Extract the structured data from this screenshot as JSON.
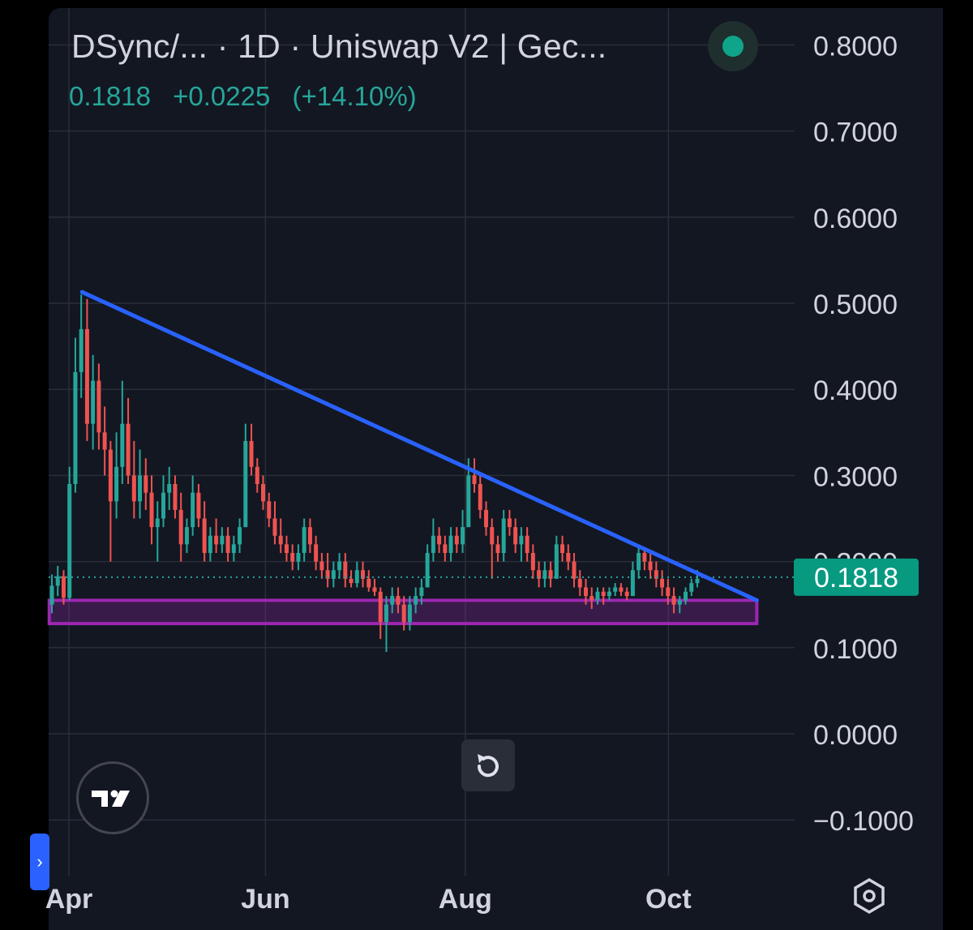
{
  "header": {
    "title": "DSync/...    · 1D · Uniswap V2 | Gec...",
    "last_price": "0.1818",
    "change": "+0.0225",
    "change_pct": "(+14.10%)",
    "status_color": "#0fa58a"
  },
  "price_tag": {
    "label": "0.1818",
    "color": "#089981"
  },
  "icons": {
    "reset": "reset-icon",
    "logo": "tradingview-logo",
    "toggle": "chevron-right-icon",
    "settings": "settings-hexagon-icon"
  },
  "colors": {
    "background": "#131722",
    "up": "#26a69a",
    "down": "#ef5350",
    "trendline": "#2962ff",
    "support_zone": "#9c27b0",
    "grid": "#2a2e39",
    "text": "#d1d4dc"
  },
  "chart_data": {
    "type": "candlestick",
    "x_tick_labels": [
      "Apr",
      "Jun",
      "Aug",
      "Oct"
    ],
    "y_tick_labels": [
      "0.8000",
      "0.7000",
      "0.6000",
      "0.5000",
      "0.4000",
      "0.3000",
      "0.2000",
      "0.1000",
      "0.0000",
      "−0.1000"
    ],
    "ylim": [
      -0.13,
      0.85
    ],
    "grid": true,
    "last_price": 0.1818,
    "trendline": {
      "start": {
        "day": 4,
        "price": 0.513
      },
      "end": {
        "day": 210,
        "price": 0.155
      }
    },
    "support_zone": {
      "start_day": -6,
      "end_day": 210,
      "top": 0.155,
      "bottom": 0.128
    },
    "ohlc": [
      [
        0.15,
        0.185,
        0.14,
        0.172
      ],
      [
        0.172,
        0.195,
        0.16,
        0.183
      ],
      [
        0.183,
        0.19,
        0.15,
        0.158
      ],
      [
        0.158,
        0.31,
        0.155,
        0.29
      ],
      [
        0.29,
        0.46,
        0.28,
        0.42
      ],
      [
        0.42,
        0.51,
        0.39,
        0.47
      ],
      [
        0.47,
        0.505,
        0.34,
        0.36
      ],
      [
        0.36,
        0.44,
        0.33,
        0.41
      ],
      [
        0.41,
        0.43,
        0.33,
        0.35
      ],
      [
        0.35,
        0.38,
        0.3,
        0.33
      ],
      [
        0.33,
        0.34,
        0.2,
        0.27
      ],
      [
        0.27,
        0.35,
        0.25,
        0.31
      ],
      [
        0.31,
        0.41,
        0.29,
        0.36
      ],
      [
        0.36,
        0.39,
        0.29,
        0.3
      ],
      [
        0.3,
        0.34,
        0.25,
        0.27
      ],
      [
        0.27,
        0.33,
        0.25,
        0.3
      ],
      [
        0.3,
        0.32,
        0.26,
        0.28
      ],
      [
        0.28,
        0.3,
        0.22,
        0.24
      ],
      [
        0.24,
        0.27,
        0.2,
        0.25
      ],
      [
        0.25,
        0.3,
        0.24,
        0.28
      ],
      [
        0.28,
        0.31,
        0.26,
        0.29
      ],
      [
        0.29,
        0.3,
        0.25,
        0.26
      ],
      [
        0.26,
        0.28,
        0.2,
        0.22
      ],
      [
        0.22,
        0.25,
        0.21,
        0.24
      ],
      [
        0.24,
        0.3,
        0.23,
        0.28
      ],
      [
        0.28,
        0.29,
        0.24,
        0.25
      ],
      [
        0.25,
        0.27,
        0.2,
        0.21
      ],
      [
        0.21,
        0.24,
        0.2,
        0.23
      ],
      [
        0.23,
        0.25,
        0.21,
        0.22
      ],
      [
        0.22,
        0.24,
        0.21,
        0.23
      ],
      [
        0.23,
        0.24,
        0.2,
        0.21
      ],
      [
        0.21,
        0.23,
        0.2,
        0.22
      ],
      [
        0.22,
        0.25,
        0.21,
        0.24
      ],
      [
        0.24,
        0.36,
        0.24,
        0.34
      ],
      [
        0.34,
        0.36,
        0.3,
        0.31
      ],
      [
        0.31,
        0.32,
        0.28,
        0.29
      ],
      [
        0.29,
        0.3,
        0.26,
        0.27
      ],
      [
        0.27,
        0.28,
        0.24,
        0.25
      ],
      [
        0.25,
        0.27,
        0.22,
        0.23
      ],
      [
        0.23,
        0.25,
        0.21,
        0.22
      ],
      [
        0.22,
        0.23,
        0.2,
        0.21
      ],
      [
        0.21,
        0.22,
        0.19,
        0.2
      ],
      [
        0.2,
        0.22,
        0.19,
        0.21
      ],
      [
        0.21,
        0.25,
        0.2,
        0.24
      ],
      [
        0.24,
        0.25,
        0.21,
        0.22
      ],
      [
        0.22,
        0.23,
        0.19,
        0.2
      ],
      [
        0.2,
        0.21,
        0.18,
        0.19
      ],
      [
        0.19,
        0.21,
        0.17,
        0.18
      ],
      [
        0.18,
        0.2,
        0.17,
        0.19
      ],
      [
        0.19,
        0.21,
        0.18,
        0.2
      ],
      [
        0.2,
        0.21,
        0.17,
        0.18
      ],
      [
        0.18,
        0.19,
        0.17,
        0.175
      ],
      [
        0.175,
        0.2,
        0.17,
        0.19
      ],
      [
        0.19,
        0.2,
        0.17,
        0.18
      ],
      [
        0.18,
        0.19,
        0.165,
        0.17
      ],
      [
        0.17,
        0.18,
        0.16,
        0.165
      ],
      [
        0.165,
        0.17,
        0.11,
        0.13
      ],
      [
        0.13,
        0.16,
        0.095,
        0.15
      ],
      [
        0.15,
        0.17,
        0.14,
        0.16
      ],
      [
        0.16,
        0.17,
        0.14,
        0.15
      ],
      [
        0.15,
        0.16,
        0.12,
        0.13
      ],
      [
        0.13,
        0.16,
        0.12,
        0.15
      ],
      [
        0.15,
        0.17,
        0.14,
        0.16
      ],
      [
        0.16,
        0.18,
        0.15,
        0.17
      ],
      [
        0.17,
        0.22,
        0.17,
        0.21
      ],
      [
        0.21,
        0.25,
        0.2,
        0.23
      ],
      [
        0.23,
        0.24,
        0.21,
        0.22
      ],
      [
        0.22,
        0.23,
        0.2,
        0.21
      ],
      [
        0.21,
        0.24,
        0.2,
        0.23
      ],
      [
        0.23,
        0.24,
        0.21,
        0.22
      ],
      [
        0.22,
        0.26,
        0.21,
        0.24
      ],
      [
        0.24,
        0.32,
        0.24,
        0.3
      ],
      [
        0.3,
        0.32,
        0.28,
        0.29
      ],
      [
        0.29,
        0.3,
        0.25,
        0.26
      ],
      [
        0.26,
        0.27,
        0.23,
        0.24
      ],
      [
        0.24,
        0.25,
        0.18,
        0.22
      ],
      [
        0.22,
        0.23,
        0.2,
        0.21
      ],
      [
        0.21,
        0.26,
        0.2,
        0.25
      ],
      [
        0.25,
        0.26,
        0.23,
        0.24
      ],
      [
        0.24,
        0.25,
        0.21,
        0.22
      ],
      [
        0.22,
        0.24,
        0.2,
        0.23
      ],
      [
        0.23,
        0.24,
        0.2,
        0.21
      ],
      [
        0.21,
        0.22,
        0.18,
        0.19
      ],
      [
        0.19,
        0.2,
        0.17,
        0.18
      ],
      [
        0.18,
        0.2,
        0.17,
        0.19
      ],
      [
        0.19,
        0.2,
        0.17,
        0.18
      ],
      [
        0.18,
        0.23,
        0.18,
        0.22
      ],
      [
        0.22,
        0.23,
        0.2,
        0.21
      ],
      [
        0.21,
        0.22,
        0.19,
        0.2
      ],
      [
        0.2,
        0.21,
        0.17,
        0.18
      ],
      [
        0.18,
        0.19,
        0.16,
        0.17
      ],
      [
        0.17,
        0.18,
        0.15,
        0.16
      ],
      [
        0.16,
        0.17,
        0.145,
        0.155
      ],
      [
        0.155,
        0.17,
        0.15,
        0.165
      ],
      [
        0.165,
        0.17,
        0.15,
        0.16
      ],
      [
        0.16,
        0.17,
        0.155,
        0.165
      ],
      [
        0.165,
        0.175,
        0.16,
        0.17
      ],
      [
        0.17,
        0.175,
        0.16,
        0.165
      ],
      [
        0.165,
        0.17,
        0.155,
        0.16
      ],
      [
        0.16,
        0.2,
        0.16,
        0.19
      ],
      [
        0.19,
        0.22,
        0.18,
        0.21
      ],
      [
        0.21,
        0.215,
        0.19,
        0.2
      ],
      [
        0.2,
        0.21,
        0.18,
        0.19
      ],
      [
        0.19,
        0.2,
        0.17,
        0.18
      ],
      [
        0.18,
        0.19,
        0.16,
        0.17
      ],
      [
        0.17,
        0.18,
        0.15,
        0.16
      ],
      [
        0.16,
        0.17,
        0.14,
        0.15
      ],
      [
        0.15,
        0.16,
        0.14,
        0.155
      ],
      [
        0.155,
        0.17,
        0.15,
        0.165
      ],
      [
        0.165,
        0.18,
        0.16,
        0.175
      ],
      [
        0.175,
        0.19,
        0.17,
        0.18
      ]
    ]
  }
}
